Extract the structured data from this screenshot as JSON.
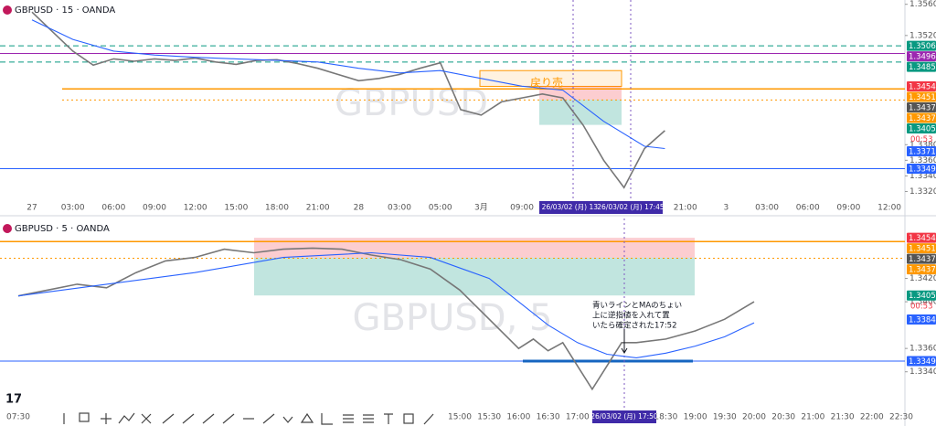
{
  "chart_data": [
    {
      "type": "line",
      "title": "GBPUSD · 15 · OANDA",
      "watermark": "GBPUSD",
      "annotation": "戻り売",
      "categories": [
        "27",
        "03:00",
        "06:00",
        "09:00",
        "12:00",
        "15:00",
        "18:00",
        "21:00",
        "28",
        "03:00",
        "05:00",
        "3月",
        "09:00",
        null,
        null,
        null,
        "21:00",
        "3",
        "03:00",
        "06:00",
        "09:00",
        "12:00"
      ],
      "ylim": [
        1.331,
        1.3562
      ],
      "yticks": [
        {
          "value": 1.356,
          "label": "1.35600"
        },
        {
          "value": 1.352,
          "label": "1.35200"
        },
        {
          "value": 1.338,
          "label": "1.33800"
        },
        {
          "value": 1.336,
          "label": "1.33600"
        },
        {
          "value": 1.334,
          "label": "1.33400"
        },
        {
          "value": 1.332,
          "label": "1.33200"
        }
      ],
      "levels": [
        {
          "value": 1.35067,
          "label": "1.35067",
          "color": "#089981",
          "style": "dashed"
        },
        {
          "value": 1.34969,
          "label": "1.34969",
          "color": "#9c27b0",
          "style": "solid"
        },
        {
          "value": 1.34859,
          "label": "1.34859",
          "color": "#089981",
          "style": "dashed"
        },
        {
          "value": 1.34548,
          "label": "1.34548",
          "color": "#f23645",
          "style": "none"
        },
        {
          "value": 1.34516,
          "label": "1.34516",
          "color": "#ff9800",
          "style": "solid"
        },
        {
          "value": 1.34378,
          "label": "1.34378",
          "color": "#555555",
          "style": "none"
        },
        {
          "value": 1.34373,
          "label": "1.34373",
          "color": "#ff9800",
          "style": "dotted"
        },
        {
          "value": 1.34054,
          "label": "1.34054",
          "color": "#089981",
          "style": "none"
        },
        {
          "value": 1.33716,
          "label": "1.33716",
          "color": "#2962ff",
          "style": "none"
        },
        {
          "value": 1.33492,
          "label": "1.33492",
          "color": "#2962ff",
          "style": "solid"
        }
      ],
      "countdown": "00:53",
      "cursor_labels": [
        "26/03/02 (月)  13:4",
        "26/03/02 (月)  17:45"
      ],
      "series": [
        {
          "color": "#777777",
          "x": [
            0,
            0.5,
            1,
            1.5,
            2,
            2.5,
            3,
            3.5,
            4,
            4.5,
            5,
            5.5,
            6,
            6.5,
            7,
            7.5,
            8,
            8.5,
            9,
            9.5,
            10,
            10.5,
            11,
            11.5,
            12,
            12.5,
            13,
            13.5,
            14,
            14.5,
            15,
            15.5
          ],
          "values": [
            1.355,
            1.3525,
            1.35,
            1.3482,
            1.349,
            1.3487,
            1.349,
            1.3488,
            1.3491,
            1.3486,
            1.3483,
            1.3488,
            1.3489,
            1.3484,
            1.3478,
            1.347,
            1.3462,
            1.3465,
            1.347,
            1.3478,
            1.3485,
            1.3425,
            1.3418,
            1.3435,
            1.344,
            1.3445,
            1.344,
            1.3405,
            1.336,
            1.3325,
            1.3375,
            1.3398
          ]
        },
        {
          "color": "#2962ff",
          "x": [
            0,
            1,
            2,
            3,
            4,
            5,
            6,
            7,
            8,
            9,
            10,
            11,
            12,
            13,
            14,
            15,
            15.5
          ],
          "values": [
            1.354,
            1.3515,
            1.35,
            1.3495,
            1.3492,
            1.349,
            1.3488,
            1.3486,
            1.3478,
            1.3472,
            1.3475,
            1.3465,
            1.3455,
            1.345,
            1.341,
            1.3378,
            1.3375
          ]
        }
      ]
    },
    {
      "type": "line",
      "title": "GBPUSD · 5 · OANDA",
      "watermark": "GBPUSD, 5",
      "annotation": [
        "青いラインとMAのちょい",
        "上に逆指値を入れて置",
        "いたら確定された17:52"
      ],
      "categories": [
        "07:30",
        null,
        null,
        null,
        null,
        null,
        null,
        null,
        null,
        null,
        null,
        null,
        null,
        null,
        null,
        "15:00",
        "15:30",
        "16:00",
        "16:30",
        "17:00",
        null,
        null,
        "18:30",
        "19:00",
        "19:30",
        "20:00",
        "20:30",
        "21:00",
        "21:30",
        "22:00",
        "22:30"
      ],
      "ylim": [
        1.331,
        1.3469
      ],
      "yticks": [
        {
          "value": 1.342,
          "label": "1.34200"
        },
        {
          "value": 1.34,
          "label": "1.34000"
        },
        {
          "value": 1.336,
          "label": "1.33600"
        },
        {
          "value": 1.334,
          "label": "1.33400"
        }
      ],
      "levels": [
        {
          "value": 1.34548,
          "label": "1.34548",
          "color": "#f23645",
          "style": "none"
        },
        {
          "value": 1.34516,
          "label": "1.34516",
          "color": "#ff9800",
          "style": "solid"
        },
        {
          "value": 1.34378,
          "label": "1.34378",
          "color": "#555555",
          "style": "none"
        },
        {
          "value": 1.34373,
          "label": "1.34373",
          "color": "#ff9800",
          "style": "dotted"
        },
        {
          "value": 1.34054,
          "label": "1.34054",
          "color": "#089981",
          "style": "none"
        },
        {
          "value": 1.33848,
          "label": "1.33848",
          "color": "#2962ff",
          "style": "none"
        },
        {
          "value": 1.33492,
          "label": "1.33492",
          "color": "#2962ff",
          "style": "solid"
        }
      ],
      "countdown": "00:53",
      "cursor_labels": [
        "26/03/02 (月)  17:50"
      ],
      "series": [
        {
          "color": "#777777",
          "x": [
            0,
            1,
            2,
            3,
            4,
            5,
            6,
            7,
            8,
            9,
            10,
            11,
            12,
            13,
            14,
            15,
            16,
            17,
            17.5,
            18,
            18.5,
            19,
            19.5,
            20,
            20.5,
            21,
            22,
            23,
            24,
            25
          ],
          "values": [
            1.3405,
            1.341,
            1.3415,
            1.3412,
            1.3425,
            1.3435,
            1.3438,
            1.3445,
            1.3442,
            1.3445,
            1.3446,
            1.3445,
            1.344,
            1.3436,
            1.3428,
            1.341,
            1.3385,
            1.336,
            1.3368,
            1.3358,
            1.3365,
            1.3345,
            1.3325,
            1.3345,
            1.3365,
            1.3365,
            1.3368,
            1.3375,
            1.3385,
            1.34
          ]
        },
        {
          "color": "#2962ff",
          "x": [
            0,
            3,
            6,
            9,
            12,
            14,
            16,
            17,
            18,
            19,
            20,
            21,
            22,
            23,
            24,
            25
          ],
          "values": [
            1.3405,
            1.3415,
            1.3425,
            1.3438,
            1.3442,
            1.3438,
            1.342,
            1.34,
            1.338,
            1.3365,
            1.3355,
            1.3352,
            1.3356,
            1.3362,
            1.337,
            1.3382
          ]
        }
      ]
    }
  ]
}
